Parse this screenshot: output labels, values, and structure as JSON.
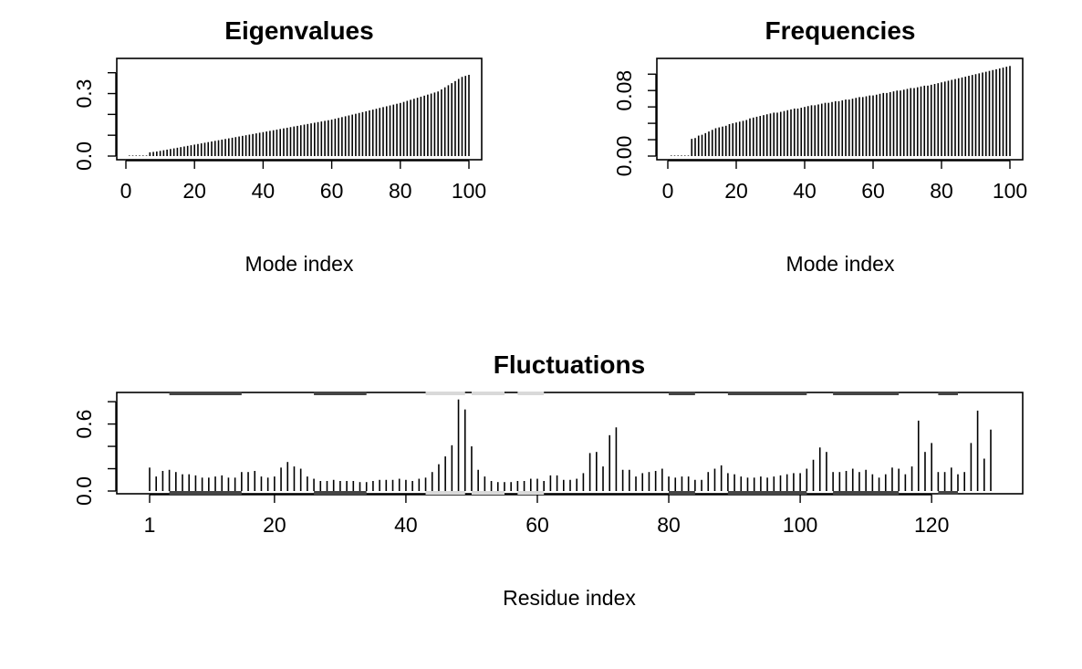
{
  "chart_data": [
    {
      "id": "eig",
      "type": "bar",
      "title": "Eigenvalues",
      "xlabel": "Mode index",
      "ylabel": "",
      "xlim": [
        0,
        100
      ],
      "ylim": [
        0,
        0.46
      ],
      "xticks": [
        0,
        20,
        40,
        60,
        80,
        100
      ],
      "yticks": [
        0.0,
        0.3
      ],
      "ytick_labels": [
        "0.0",
        "0.3"
      ],
      "yminor_ticks": [
        0.0,
        0.1,
        0.2,
        0.3,
        0.4
      ],
      "x": [
        1,
        2,
        3,
        4,
        5,
        6,
        7,
        8,
        9,
        10,
        11,
        12,
        13,
        14,
        15,
        16,
        17,
        18,
        19,
        20,
        21,
        22,
        23,
        24,
        25,
        26,
        27,
        28,
        29,
        30,
        31,
        32,
        33,
        34,
        35,
        36,
        37,
        38,
        39,
        40,
        41,
        42,
        43,
        44,
        45,
        46,
        47,
        48,
        49,
        50,
        51,
        52,
        53,
        54,
        55,
        56,
        57,
        58,
        59,
        60,
        61,
        62,
        63,
        64,
        65,
        66,
        67,
        68,
        69,
        70,
        71,
        72,
        73,
        74,
        75,
        76,
        77,
        78,
        79,
        80,
        81,
        82,
        83,
        84,
        85,
        86,
        87,
        88,
        89,
        90,
        91,
        92,
        93,
        94,
        95,
        96,
        97,
        98,
        99,
        100
      ],
      "values": [
        0,
        0,
        0,
        0,
        0,
        0,
        0.018,
        0.02,
        0.022,
        0.025,
        0.028,
        0.031,
        0.034,
        0.037,
        0.04,
        0.043,
        0.046,
        0.049,
        0.052,
        0.055,
        0.058,
        0.061,
        0.064,
        0.067,
        0.07,
        0.073,
        0.076,
        0.079,
        0.082,
        0.085,
        0.088,
        0.091,
        0.094,
        0.097,
        0.1,
        0.103,
        0.106,
        0.109,
        0.112,
        0.115,
        0.118,
        0.121,
        0.124,
        0.127,
        0.13,
        0.133,
        0.136,
        0.139,
        0.142,
        0.145,
        0.148,
        0.151,
        0.154,
        0.157,
        0.16,
        0.163,
        0.166,
        0.169,
        0.172,
        0.175,
        0.179,
        0.183,
        0.187,
        0.191,
        0.195,
        0.199,
        0.203,
        0.207,
        0.211,
        0.215,
        0.219,
        0.223,
        0.227,
        0.231,
        0.235,
        0.239,
        0.243,
        0.247,
        0.251,
        0.255,
        0.26,
        0.265,
        0.27,
        0.275,
        0.28,
        0.285,
        0.29,
        0.295,
        0.3,
        0.305,
        0.31,
        0.32,
        0.33,
        0.34,
        0.35,
        0.36,
        0.37,
        0.38,
        0.385,
        0.39
      ]
    },
    {
      "id": "freq",
      "type": "bar",
      "title": "Frequencies",
      "xlabel": "Mode index",
      "ylabel": "",
      "xlim": [
        0,
        100
      ],
      "ylim": [
        0,
        0.117
      ],
      "xticks": [
        0,
        20,
        40,
        60,
        80,
        100
      ],
      "yticks": [
        0.0,
        0.08
      ],
      "ytick_labels": [
        "0.00",
        "0.08"
      ],
      "yminor_ticks": [
        0.0,
        0.02,
        0.04,
        0.06,
        0.08,
        0.1
      ],
      "x": [
        1,
        2,
        3,
        4,
        5,
        6,
        7,
        8,
        9,
        10,
        11,
        12,
        13,
        14,
        15,
        16,
        17,
        18,
        19,
        20,
        21,
        22,
        23,
        24,
        25,
        26,
        27,
        28,
        29,
        30,
        31,
        32,
        33,
        34,
        35,
        36,
        37,
        38,
        39,
        40,
        41,
        42,
        43,
        44,
        45,
        46,
        47,
        48,
        49,
        50,
        51,
        52,
        53,
        54,
        55,
        56,
        57,
        58,
        59,
        60,
        61,
        62,
        63,
        64,
        65,
        66,
        67,
        68,
        69,
        70,
        71,
        72,
        73,
        74,
        75,
        76,
        77,
        78,
        79,
        80,
        81,
        82,
        83,
        84,
        85,
        86,
        87,
        88,
        89,
        90,
        91,
        92,
        93,
        94,
        95,
        96,
        97,
        98,
        99,
        100
      ],
      "values": [
        0,
        0,
        0,
        0,
        0,
        0,
        0.021,
        0.022,
        0.025,
        0.026,
        0.028,
        0.03,
        0.032,
        0.034,
        0.035,
        0.036,
        0.037,
        0.039,
        0.04,
        0.041,
        0.042,
        0.043,
        0.044,
        0.046,
        0.047,
        0.048,
        0.049,
        0.05,
        0.051,
        0.052,
        0.053,
        0.053,
        0.054,
        0.055,
        0.056,
        0.057,
        0.058,
        0.058,
        0.059,
        0.06,
        0.061,
        0.062,
        0.062,
        0.063,
        0.064,
        0.065,
        0.065,
        0.066,
        0.067,
        0.067,
        0.068,
        0.069,
        0.069,
        0.07,
        0.071,
        0.072,
        0.072,
        0.073,
        0.074,
        0.074,
        0.075,
        0.076,
        0.077,
        0.077,
        0.078,
        0.079,
        0.08,
        0.08,
        0.081,
        0.082,
        0.083,
        0.083,
        0.084,
        0.085,
        0.086,
        0.086,
        0.087,
        0.088,
        0.089,
        0.09,
        0.091,
        0.092,
        0.093,
        0.094,
        0.095,
        0.096,
        0.097,
        0.098,
        0.099,
        0.1,
        0.101,
        0.102,
        0.103,
        0.104,
        0.105,
        0.106,
        0.107,
        0.108,
        0.109,
        0.11
      ]
    },
    {
      "id": "fluct",
      "type": "bar",
      "title": "Fluctuations",
      "xlabel": "Residue index",
      "ylabel": "",
      "xlim": [
        1,
        129
      ],
      "ylim": [
        0,
        0.85
      ],
      "xticks": [
        1,
        20,
        40,
        60,
        80,
        100,
        120
      ],
      "yticks": [
        0.0,
        0.6
      ],
      "ytick_labels": [
        "0.0",
        "0.6"
      ],
      "yminor_ticks": [
        0.0,
        0.2,
        0.4,
        0.6,
        0.8
      ],
      "x": [
        1,
        2,
        3,
        4,
        5,
        6,
        7,
        8,
        9,
        10,
        11,
        12,
        13,
        14,
        15,
        16,
        17,
        18,
        19,
        20,
        21,
        22,
        23,
        24,
        25,
        26,
        27,
        28,
        29,
        30,
        31,
        32,
        33,
        34,
        35,
        36,
        37,
        38,
        39,
        40,
        41,
        42,
        43,
        44,
        45,
        46,
        47,
        48,
        49,
        50,
        51,
        52,
        53,
        54,
        55,
        56,
        57,
        58,
        59,
        60,
        61,
        62,
        63,
        64,
        65,
        66,
        67,
        68,
        69,
        70,
        71,
        72,
        73,
        74,
        75,
        76,
        77,
        78,
        79,
        80,
        81,
        82,
        83,
        84,
        85,
        86,
        87,
        88,
        89,
        90,
        91,
        92,
        93,
        94,
        95,
        96,
        97,
        98,
        99,
        100,
        101,
        102,
        103,
        104,
        105,
        106,
        107,
        108,
        109,
        110,
        111,
        112,
        113,
        114,
        115,
        116,
        117,
        118,
        119,
        120,
        121,
        122,
        123,
        124,
        125,
        126,
        127,
        128,
        129
      ],
      "values": [
        0.21,
        0.13,
        0.18,
        0.19,
        0.17,
        0.15,
        0.15,
        0.14,
        0.12,
        0.12,
        0.13,
        0.14,
        0.12,
        0.12,
        0.17,
        0.17,
        0.18,
        0.13,
        0.12,
        0.13,
        0.21,
        0.26,
        0.22,
        0.2,
        0.13,
        0.11,
        0.09,
        0.09,
        0.1,
        0.09,
        0.09,
        0.09,
        0.08,
        0.08,
        0.09,
        0.1,
        0.1,
        0.1,
        0.11,
        0.1,
        0.09,
        0.11,
        0.12,
        0.17,
        0.24,
        0.31,
        0.41,
        0.82,
        0.73,
        0.4,
        0.19,
        0.13,
        0.09,
        0.08,
        0.08,
        0.08,
        0.09,
        0.09,
        0.11,
        0.11,
        0.09,
        0.14,
        0.14,
        0.1,
        0.1,
        0.11,
        0.16,
        0.34,
        0.35,
        0.22,
        0.5,
        0.57,
        0.19,
        0.19,
        0.13,
        0.16,
        0.17,
        0.18,
        0.2,
        0.13,
        0.12,
        0.13,
        0.13,
        0.1,
        0.1,
        0.17,
        0.2,
        0.23,
        0.16,
        0.15,
        0.13,
        0.12,
        0.12,
        0.13,
        0.12,
        0.13,
        0.14,
        0.15,
        0.16,
        0.16,
        0.2,
        0.28,
        0.39,
        0.35,
        0.17,
        0.17,
        0.18,
        0.2,
        0.17,
        0.19,
        0.15,
        0.12,
        0.15,
        0.21,
        0.2,
        0.15,
        0.22,
        0.63,
        0.35,
        0.43,
        0.17,
        0.17,
        0.21,
        0.15,
        0.17,
        0.43,
        0.72,
        0.29,
        0.55
      ],
      "sse_top": [
        {
          "start": 4,
          "end": 15,
          "color": "#444444"
        },
        {
          "start": 26,
          "end": 34,
          "color": "#444444"
        },
        {
          "start": 43,
          "end": 49,
          "color": "#d9d9d9"
        },
        {
          "start": 50,
          "end": 55,
          "color": "#d9d9d9"
        },
        {
          "start": 57,
          "end": 61,
          "color": "#d9d9d9"
        },
        {
          "start": 80,
          "end": 84,
          "color": "#444444"
        },
        {
          "start": 89,
          "end": 101,
          "color": "#444444"
        },
        {
          "start": 105,
          "end": 115,
          "color": "#444444"
        },
        {
          "start": 121,
          "end": 124,
          "color": "#444444"
        }
      ],
      "sse_bottom": [
        {
          "start": 4,
          "end": 15,
          "color": "#444444"
        },
        {
          "start": 26,
          "end": 34,
          "color": "#444444"
        },
        {
          "start": 43,
          "end": 49,
          "color": "#d9d9d9"
        },
        {
          "start": 50,
          "end": 55,
          "color": "#d9d9d9"
        },
        {
          "start": 57,
          "end": 61,
          "color": "#d9d9d9"
        },
        {
          "start": 80,
          "end": 84,
          "color": "#444444"
        },
        {
          "start": 89,
          "end": 101,
          "color": "#444444"
        },
        {
          "start": 105,
          "end": 115,
          "color": "#444444"
        },
        {
          "start": 121,
          "end": 124,
          "color": "#444444"
        }
      ]
    }
  ]
}
